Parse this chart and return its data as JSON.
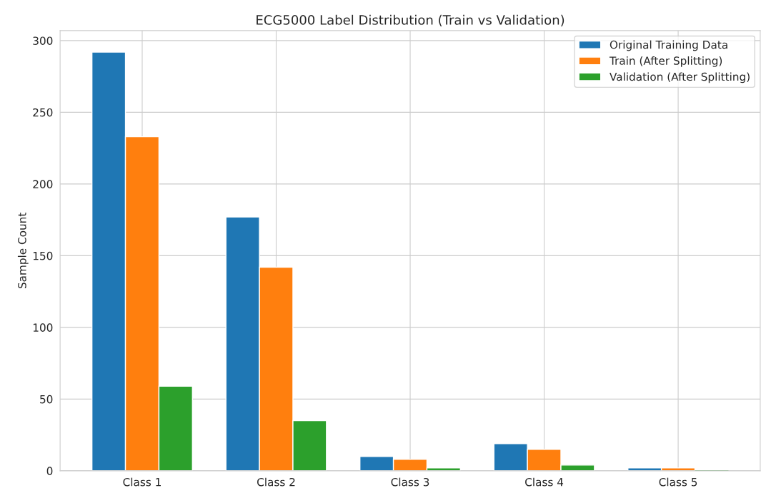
{
  "chart_data": {
    "type": "bar",
    "title": "ECG5000 Label Distribution (Train vs Validation)",
    "ylabel": "Sample Count",
    "categories": [
      "Class 1",
      "Class 2",
      "Class 3",
      "Class 4",
      "Class 5"
    ],
    "series": [
      {
        "name": "Original Training Data",
        "color": "#1f77b4",
        "values": [
          292,
          177,
          10,
          19,
          2
        ]
      },
      {
        "name": "Train (After Splitting)",
        "color": "#ff7f0e",
        "values": [
          233,
          142,
          8,
          15,
          2
        ]
      },
      {
        "name": "Validation (After Splitting)",
        "color": "#2ca02c",
        "values": [
          59,
          35,
          2,
          4,
          0
        ]
      }
    ],
    "ylim": [
      0,
      307
    ],
    "yticks": [
      0,
      50,
      100,
      150,
      200,
      250,
      300
    ],
    "grid": true,
    "legend": "top right"
  }
}
